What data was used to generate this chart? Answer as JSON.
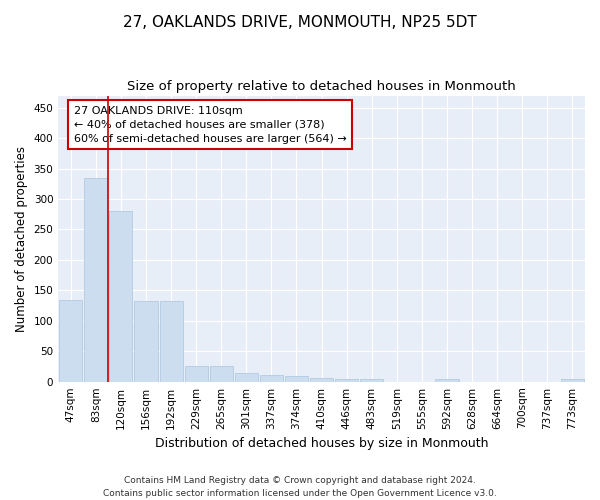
{
  "title": "27, OAKLANDS DRIVE, MONMOUTH, NP25 5DT",
  "subtitle": "Size of property relative to detached houses in Monmouth",
  "xlabel": "Distribution of detached houses by size in Monmouth",
  "ylabel": "Number of detached properties",
  "categories": [
    "47sqm",
    "83sqm",
    "120sqm",
    "156sqm",
    "192sqm",
    "229sqm",
    "265sqm",
    "301sqm",
    "337sqm",
    "374sqm",
    "410sqm",
    "446sqm",
    "483sqm",
    "519sqm",
    "555sqm",
    "592sqm",
    "628sqm",
    "664sqm",
    "700sqm",
    "737sqm",
    "773sqm"
  ],
  "values": [
    134,
    335,
    280,
    133,
    133,
    26,
    26,
    15,
    11,
    9,
    6,
    5,
    4,
    0,
    0,
    4,
    0,
    0,
    0,
    0,
    4
  ],
  "bar_color": "#ccddf0",
  "bar_edge_color": "#aac4e0",
  "vline_x": 1.5,
  "vline_color": "#cc0000",
  "annotation_text": "27 OAKLANDS DRIVE: 110sqm\n← 40% of detached houses are smaller (378)\n60% of semi-detached houses are larger (564) →",
  "annotation_box_color": "#ffffff",
  "annotation_box_edge": "#cc0000",
  "ylim": [
    0,
    470
  ],
  "yticks": [
    0,
    50,
    100,
    150,
    200,
    250,
    300,
    350,
    400,
    450
  ],
  "bg_color": "#e8eef8",
  "grid_color": "#ffffff",
  "footer": "Contains HM Land Registry data © Crown copyright and database right 2024.\nContains public sector information licensed under the Open Government Licence v3.0.",
  "title_fontsize": 11,
  "subtitle_fontsize": 9.5,
  "xlabel_fontsize": 9,
  "ylabel_fontsize": 8.5,
  "tick_fontsize": 7.5,
  "annotation_fontsize": 8,
  "footer_fontsize": 6.5
}
